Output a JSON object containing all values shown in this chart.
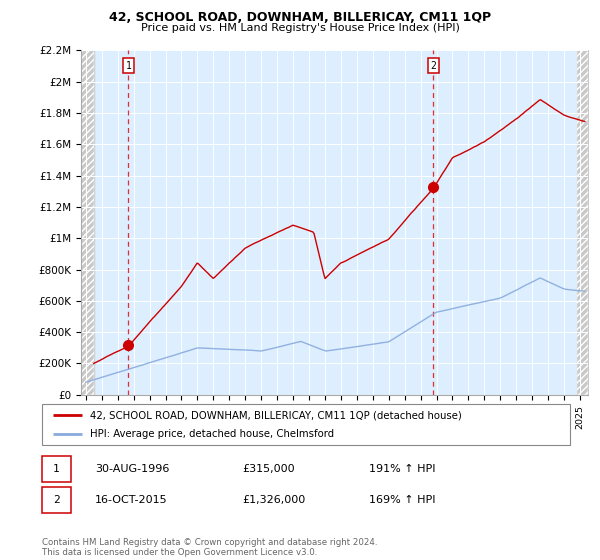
{
  "title1": "42, SCHOOL ROAD, DOWNHAM, BILLERICAY, CM11 1QP",
  "title2": "Price paid vs. HM Land Registry's House Price Index (HPI)",
  "legend_line1": "42, SCHOOL ROAD, DOWNHAM, BILLERICAY, CM11 1QP (detached house)",
  "legend_line2": "HPI: Average price, detached house, Chelmsford",
  "annotation1_date": "30-AUG-1996",
  "annotation1_price": "£315,000",
  "annotation1_hpi": "191% ↑ HPI",
  "annotation2_date": "16-OCT-2015",
  "annotation2_price": "£1,326,000",
  "annotation2_hpi": "169% ↑ HPI",
  "footer": "Contains HM Land Registry data © Crown copyright and database right 2024.\nThis data is licensed under the Open Government Licence v3.0.",
  "sale1_x": 1996.667,
  "sale1_y": 315000,
  "sale2_x": 2015.792,
  "sale2_y": 1326000,
  "hpi_color": "#88aadd",
  "price_color": "#cc0000",
  "background_plot": "#ddeeff",
  "ylim": [
    0,
    2200000
  ],
  "xlim_start": 1993.7,
  "xlim_end": 2025.5,
  "yticks": [
    0,
    200000,
    400000,
    600000,
    800000,
    1000000,
    1200000,
    1400000,
    1600000,
    1800000,
    2000000,
    2200000
  ],
  "ytick_labels": [
    "£0",
    "£200K",
    "£400K",
    "£600K",
    "£800K",
    "£1M",
    "£1.2M",
    "£1.4M",
    "£1.6M",
    "£1.8M",
    "£2M",
    "£2.2M"
  ]
}
